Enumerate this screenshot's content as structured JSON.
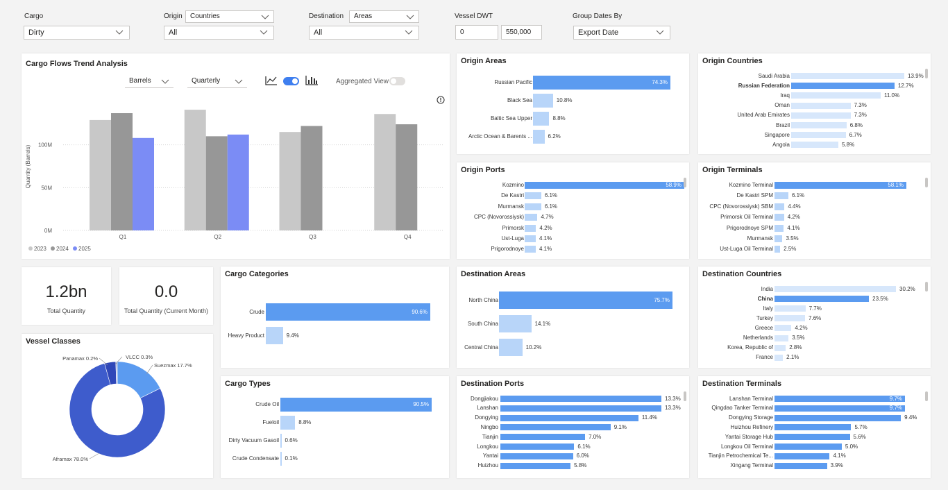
{
  "filters": {
    "cargo": {
      "label": "Cargo",
      "value": "Dirty"
    },
    "origin": {
      "label": "Origin",
      "mode": "Countries",
      "value": "All"
    },
    "destination": {
      "label": "Destination",
      "mode": "Areas",
      "value": "All"
    },
    "vessel_dwt": {
      "label": "Vessel DWT",
      "min": "0",
      "max": "550,000"
    },
    "group_dates": {
      "label": "Group Dates By",
      "value": "Export Date"
    }
  },
  "trend": {
    "title": "Cargo Flows Trend Analysis",
    "unit_dropdown": "Barrels",
    "period_dropdown": "Quarterly",
    "aggregated_label": "Aggregated View",
    "ylabel": "Quantity (Barrels)",
    "legend": [
      {
        "name": "2023",
        "color": "#c8c8c8"
      },
      {
        "name": "2024",
        "color": "#979797"
      },
      {
        "name": "2025",
        "color": "#7b8cf5"
      }
    ]
  },
  "chart_data": {
    "type": "bar",
    "title": "Cargo Flows Trend Analysis",
    "categories": [
      "Q1",
      "Q2",
      "Q3",
      "Q4"
    ],
    "ylabel": "Quantity (Barrels)",
    "ylim": [
      0,
      150
    ],
    "yticks": [
      "0M",
      "50M",
      "100M"
    ],
    "series": [
      {
        "name": "2023",
        "values": [
          129,
          141,
          115,
          136
        ]
      },
      {
        "name": "2024",
        "values": [
          137,
          110,
          122,
          124
        ]
      },
      {
        "name": "2025",
        "values": [
          108,
          112,
          null,
          null
        ]
      }
    ]
  },
  "kpis": {
    "total_quantity": {
      "value": "1.2bn",
      "label": "Total Quantity"
    },
    "current_month": {
      "value": "0.0",
      "label": "Total Quantity (Current Month)"
    }
  },
  "vessel_classes": {
    "title": "Vessel Classes",
    "slices": [
      {
        "name": "Aframax",
        "label": "Aframax 78.0%",
        "value": 78.0,
        "color": "#3e5ccc"
      },
      {
        "name": "Suezmax",
        "label": "Suezmax 17.7%",
        "value": 17.7,
        "color": "#5b9bf0"
      },
      {
        "name": "Panamax",
        "label": "Panamax 0.2%",
        "value": 0.2,
        "color": "#7aa8ee"
      },
      {
        "name": "VLCC",
        "label": "VLCC 0.3%",
        "value": 0.3,
        "color": "#253a9c"
      },
      {
        "name": "Other",
        "label": "",
        "value": 3.8,
        "color": "#2f47b8"
      }
    ]
  },
  "panels": {
    "origin_areas": {
      "title": "Origin Areas",
      "items": [
        {
          "label": "Russian Pacific",
          "value": 74.3,
          "text": "74.3%",
          "highlight": true
        },
        {
          "label": "Black Sea",
          "value": 10.8,
          "text": "10.8%"
        },
        {
          "label": "Baltic Sea Upper",
          "value": 8.8,
          "text": "8.8%"
        },
        {
          "label": "Arctic Ocean & Barents ...",
          "value": 6.2,
          "text": "6.2%"
        }
      ]
    },
    "origin_countries": {
      "title": "Origin Countries",
      "items": [
        {
          "label": "Saudi Arabia",
          "value": 13.9,
          "text": "13.9%"
        },
        {
          "label": "Russian Federation",
          "value": 12.7,
          "text": "12.7%",
          "highlight": true,
          "bold": true
        },
        {
          "label": "Iraq",
          "value": 11.0,
          "text": "11.0%"
        },
        {
          "label": "Oman",
          "value": 7.3,
          "text": "7.3%"
        },
        {
          "label": "United Arab Emirates",
          "value": 7.3,
          "text": "7.3%"
        },
        {
          "label": "Brazil",
          "value": 6.8,
          "text": "6.8%"
        },
        {
          "label": "Singapore",
          "value": 6.7,
          "text": "6.7%"
        },
        {
          "label": "Angola",
          "value": 5.8,
          "text": "5.8%"
        }
      ]
    },
    "origin_ports": {
      "title": "Origin Ports",
      "items": [
        {
          "label": "Kozmino",
          "value": 58.9,
          "text": "58.9%",
          "highlight": true
        },
        {
          "label": "De Kastri",
          "value": 6.1,
          "text": "6.1%"
        },
        {
          "label": "Murmansk",
          "value": 6.1,
          "text": "6.1%"
        },
        {
          "label": "CPC (Novorossiysk)",
          "value": 4.7,
          "text": "4.7%"
        },
        {
          "label": "Primorsk",
          "value": 4.2,
          "text": "4.2%"
        },
        {
          "label": "Ust-Luga",
          "value": 4.1,
          "text": "4.1%"
        },
        {
          "label": "Prigorodnoye",
          "value": 4.1,
          "text": "4.1%"
        }
      ]
    },
    "origin_terminals": {
      "title": "Origin Terminals",
      "items": [
        {
          "label": "Kozmino Terminal",
          "value": 58.1,
          "text": "58.1%",
          "highlight": true
        },
        {
          "label": "De Kastri SPM",
          "value": 6.1,
          "text": "6.1%"
        },
        {
          "label": "CPC (Novorossiysk) SBM",
          "value": 4.4,
          "text": "4.4%"
        },
        {
          "label": "Primorsk Oil Terminal",
          "value": 4.2,
          "text": "4.2%"
        },
        {
          "label": "Prigorodnoye SPM",
          "value": 4.1,
          "text": "4.1%"
        },
        {
          "label": "Murmansk",
          "value": 3.5,
          "text": "3.5%"
        },
        {
          "label": "Ust-Luga Oil Terminal",
          "value": 2.5,
          "text": "2.5%"
        }
      ]
    },
    "cargo_categories": {
      "title": "Cargo Categories",
      "items": [
        {
          "label": "Crude",
          "value": 90.6,
          "text": "90.6%",
          "highlight": true
        },
        {
          "label": "Heavy Product",
          "value": 9.4,
          "text": "9.4%"
        }
      ]
    },
    "cargo_types": {
      "title": "Cargo Types",
      "items": [
        {
          "label": "Crude Oil",
          "value": 90.5,
          "text": "90.5%",
          "highlight": true
        },
        {
          "label": "Fueloil",
          "value": 8.8,
          "text": "8.8%"
        },
        {
          "label": "Dirty Vacuum Gasoil",
          "value": 0.6,
          "text": "0.6%"
        },
        {
          "label": "Crude Condensate",
          "value": 0.1,
          "text": "0.1%"
        }
      ]
    },
    "destination_areas": {
      "title": "Destination Areas",
      "items": [
        {
          "label": "North China",
          "value": 75.7,
          "text": "75.7%",
          "highlight": true
        },
        {
          "label": "South China",
          "value": 14.1,
          "text": "14.1%"
        },
        {
          "label": "Central China",
          "value": 10.2,
          "text": "10.2%"
        }
      ]
    },
    "destination_countries": {
      "title": "Destination Countries",
      "items": [
        {
          "label": "India",
          "value": 30.2,
          "text": "30.2%"
        },
        {
          "label": "China",
          "value": 23.5,
          "text": "23.5%",
          "highlight": true,
          "bold": true
        },
        {
          "label": "Italy",
          "value": 7.7,
          "text": "7.7%"
        },
        {
          "label": "Turkey",
          "value": 7.6,
          "text": "7.6%"
        },
        {
          "label": "Greece",
          "value": 4.2,
          "text": "4.2%"
        },
        {
          "label": "Netherlands",
          "value": 3.5,
          "text": "3.5%"
        },
        {
          "label": "Korea, Republic of",
          "value": 2.8,
          "text": "2.8%"
        },
        {
          "label": "France",
          "value": 2.1,
          "text": "2.1%"
        }
      ]
    },
    "destination_ports": {
      "title": "Destination Ports",
      "items": [
        {
          "label": "Dongjiakou",
          "value": 13.3,
          "text": "13.3%",
          "highlight": true
        },
        {
          "label": "Lanshan",
          "value": 13.3,
          "text": "13.3%",
          "highlight": true
        },
        {
          "label": "Dongying",
          "value": 11.4,
          "text": "11.4%",
          "highlight": true
        },
        {
          "label": "Ningbo",
          "value": 9.1,
          "text": "9.1%",
          "highlight": true
        },
        {
          "label": "Tianjin",
          "value": 7.0,
          "text": "7.0%",
          "highlight": true
        },
        {
          "label": "Longkou",
          "value": 6.1,
          "text": "6.1%",
          "highlight": true
        },
        {
          "label": "Yantai",
          "value": 6.0,
          "text": "6.0%",
          "highlight": true
        },
        {
          "label": "Huizhou",
          "value": 5.8,
          "text": "5.8%",
          "highlight": true
        }
      ]
    },
    "destination_terminals": {
      "title": "Destination Terminals",
      "items": [
        {
          "label": "Lanshan Terminal",
          "value": 9.7,
          "text": "9.7%",
          "highlight": true
        },
        {
          "label": "Qingdao Tanker Terminal",
          "value": 9.7,
          "text": "9.7%",
          "highlight": true
        },
        {
          "label": "Dongying Storage",
          "value": 9.4,
          "text": "9.4%",
          "highlight": true
        },
        {
          "label": "Huizhou Refinery",
          "value": 5.7,
          "text": "5.7%",
          "highlight": true
        },
        {
          "label": "Yantai Storage Hub",
          "value": 5.6,
          "text": "5.6%",
          "highlight": true
        },
        {
          "label": "Longkou Oil Terminal",
          "value": 5.0,
          "text": "5.0%",
          "highlight": true
        },
        {
          "label": "Tianjin Petrochemical Te...",
          "value": 4.1,
          "text": "4.1%",
          "highlight": true
        },
        {
          "label": "Xingang Terminal",
          "value": 3.9,
          "text": "3.9%",
          "highlight": true
        }
      ]
    }
  },
  "colors": {
    "bar_primary": "#5b9bf0",
    "bar_secondary": "#b8d5f9",
    "bar_pale": "#d7e7fb",
    "toggle_on": "#3f7fef"
  }
}
